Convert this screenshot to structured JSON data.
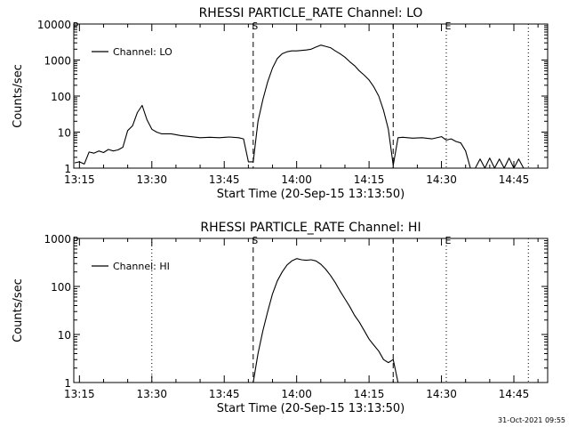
{
  "footer_stamp": "31-Oct-2021 09:55",
  "chart_data": [
    {
      "type": "line",
      "title": "RHESSI PARTICLE_RATE Channel: LO",
      "xlabel": "Start Time (20-Sep-15 13:13:50)",
      "ylabel": "Counts/sec",
      "yscale": "log",
      "ylim": [
        1,
        10000
      ],
      "xlim": [
        "13:13:50",
        "14:52"
      ],
      "x_ticks": [
        "13:15",
        "13:30",
        "13:45",
        "14:00",
        "14:15",
        "14:30",
        "14:45"
      ],
      "y_ticks": [
        "1",
        "10",
        "100",
        "1000",
        "10000"
      ],
      "legend": {
        "label": "Channel: LO",
        "position": "top-left"
      },
      "markers": [
        {
          "label": "P",
          "time": "13:13:50",
          "style": "dotted"
        },
        {
          "label": "S",
          "time": "13:51",
          "style": "dashed"
        },
        {
          "label": "",
          "time": "14:20",
          "style": "dashed"
        },
        {
          "label": "E",
          "time": "14:31",
          "style": "dotted"
        },
        {
          "label": "",
          "time": "14:48",
          "style": "dotted"
        }
      ],
      "series": [
        {
          "name": "Channel: LO",
          "x": [
            "13:14",
            "13:15",
            "13:16",
            "13:17",
            "13:18",
            "13:19",
            "13:20",
            "13:21",
            "13:22",
            "13:23",
            "13:24",
            "13:25",
            "13:26",
            "13:27",
            "13:28",
            "13:29",
            "13:30",
            "13:31",
            "13:32",
            "13:34",
            "13:36",
            "13:38",
            "13:40",
            "13:42",
            "13:44",
            "13:46",
            "13:48",
            "13:49",
            "13:50",
            "13:51",
            "13:52",
            "13:53",
            "13:54",
            "13:55",
            "13:56",
            "13:57",
            "13:58",
            "13:59",
            "14:00",
            "14:01",
            "14:02",
            "14:03",
            "14:04",
            "14:05",
            "14:06",
            "14:07",
            "14:08",
            "14:09",
            "14:10",
            "14:11",
            "14:12",
            "14:13",
            "14:14",
            "14:15",
            "14:16",
            "14:17",
            "14:18",
            "14:19",
            "14:20",
            "14:21",
            "14:22",
            "14:23",
            "14:24",
            "14:26",
            "14:28",
            "14:30",
            "14:31",
            "14:32",
            "14:33",
            "14:34",
            "14:35",
            "14:36",
            "14:37",
            "14:38",
            "14:39",
            "14:40",
            "14:41",
            "14:42",
            "14:43",
            "14:44",
            "14:45",
            "14:46",
            "14:47",
            "14:48"
          ],
          "y": [
            1.4,
            1.5,
            1.3,
            2.8,
            2.6,
            3.0,
            2.7,
            3.3,
            3.0,
            3.2,
            3.8,
            11,
            15,
            35,
            55,
            22,
            12,
            10,
            9,
            9,
            8,
            7.5,
            7,
            7.2,
            7,
            7.3,
            7,
            6.5,
            1.5,
            1.5,
            20,
            80,
            250,
            600,
            1100,
            1500,
            1700,
            1800,
            1800,
            1850,
            1900,
            2000,
            2300,
            2600,
            2400,
            2200,
            1800,
            1500,
            1200,
            900,
            700,
            500,
            380,
            280,
            180,
            100,
            40,
            12,
            1.2,
            7,
            7.2,
            7,
            6.8,
            7,
            6.5,
            7.5,
            6,
            6.5,
            5.5,
            5,
            3,
            1,
            1,
            1.8,
            1,
            1.9,
            1,
            1.8,
            1,
            1.9,
            1,
            1.8,
            1,
            1
          ]
        }
      ]
    },
    {
      "type": "line",
      "title": "RHESSI PARTICLE_RATE Channel: HI",
      "xlabel": "Start Time (20-Sep-15 13:13:50)",
      "ylabel": "Counts/sec",
      "yscale": "log",
      "ylim": [
        1,
        1000
      ],
      "xlim": [
        "13:13:50",
        "14:52"
      ],
      "x_ticks": [
        "13:15",
        "13:30",
        "13:45",
        "14:00",
        "14:15",
        "14:30",
        "14:45"
      ],
      "y_ticks": [
        "1",
        "10",
        "100",
        "1000"
      ],
      "legend": {
        "label": "Channel: HI",
        "position": "top-left"
      },
      "markers": [
        {
          "label": "P",
          "time": "13:13:50",
          "style": "dotted"
        },
        {
          "label": "S",
          "time": "13:51",
          "style": "dashed"
        },
        {
          "label": "",
          "time": "14:20",
          "style": "dashed"
        },
        {
          "label": "E",
          "time": "14:31",
          "style": "dotted"
        },
        {
          "label": "",
          "time": "14:48",
          "style": "dotted"
        },
        {
          "label": "",
          "time": "13:30",
          "style": "dotted"
        }
      ],
      "series": [
        {
          "name": "Channel: HI",
          "x": [
            "13:51",
            "13:52",
            "13:53",
            "13:54",
            "13:55",
            "13:56",
            "13:57",
            "13:58",
            "13:59",
            "14:00",
            "14:01",
            "14:02",
            "14:03",
            "14:04",
            "14:05",
            "14:06",
            "14:07",
            "14:08",
            "14:09",
            "14:10",
            "14:11",
            "14:12",
            "14:13",
            "14:14",
            "14:15",
            "14:16",
            "14:17",
            "14:18",
            "14:19",
            "14:20",
            "14:21"
          ],
          "y": [
            1,
            4,
            12,
            30,
            70,
            130,
            200,
            280,
            340,
            380,
            360,
            350,
            360,
            340,
            290,
            230,
            170,
            120,
            80,
            55,
            38,
            25,
            18,
            12,
            8,
            6,
            4.5,
            3,
            2.6,
            3,
            1
          ]
        }
      ]
    }
  ]
}
